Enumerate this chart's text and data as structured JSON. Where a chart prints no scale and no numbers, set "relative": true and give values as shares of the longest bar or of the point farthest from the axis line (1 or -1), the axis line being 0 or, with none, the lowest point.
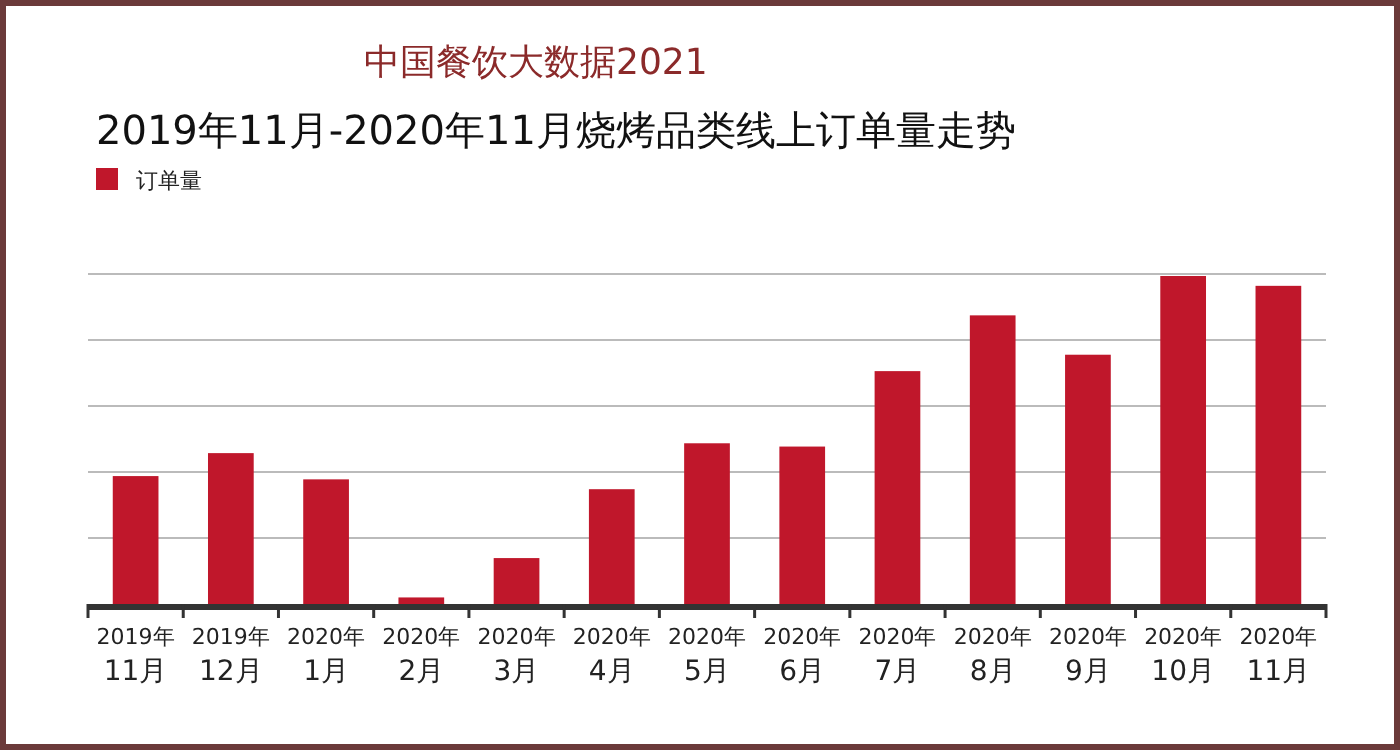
{
  "chart_data": {
    "type": "bar",
    "title": "中国餐饮大数据2021",
    "subtitle": "2019年11月-2020年11月烧烤品类线上订单量走势",
    "categories": [
      "2019年\n11月",
      "2019年\n12月",
      "2020年\n1月",
      "2020年\n2月",
      "2020年\n3月",
      "2020年\n4月",
      "2020年\n5月",
      "2020年\n6月",
      "2020年\n7月",
      "2020年\n8月",
      "2020年\n9月",
      "2020年\n10月",
      "2020年\n11月"
    ],
    "series": [
      {
        "name": "订单量",
        "color": "#c0172b",
        "values": [
          0.39,
          0.46,
          0.38,
          0.02,
          0.14,
          0.35,
          0.49,
          0.48,
          0.71,
          0.88,
          0.76,
          1,
          0.97
        ]
      }
    ],
    "relative": true,
    "grid": "y",
    "legend": "top left"
  }
}
